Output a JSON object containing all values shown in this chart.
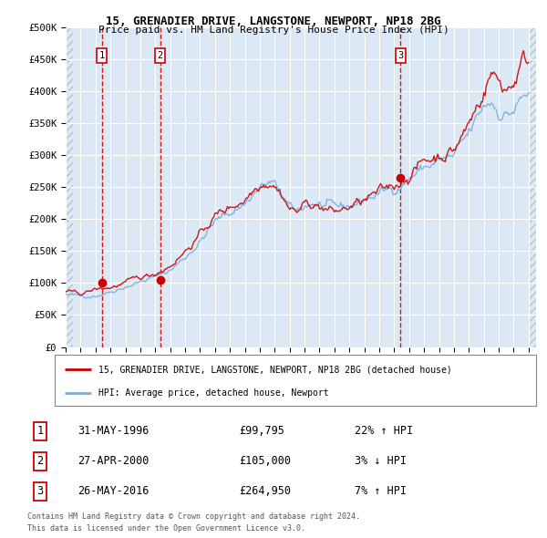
{
  "title": "15, GRENADIER DRIVE, LANGSTONE, NEWPORT, NP18 2BG",
  "subtitle": "Price paid vs. HM Land Registry's House Price Index (HPI)",
  "ylabel_ticks": [
    "£0",
    "£50K",
    "£100K",
    "£150K",
    "£200K",
    "£250K",
    "£300K",
    "£350K",
    "£400K",
    "£450K",
    "£500K"
  ],
  "ytick_values": [
    0,
    50000,
    100000,
    150000,
    200000,
    250000,
    300000,
    350000,
    400000,
    450000,
    500000
  ],
  "xlim": [
    1994.0,
    2025.5
  ],
  "ylim": [
    0,
    500000
  ],
  "hpi_color": "#7aaddb",
  "price_color": "#cc0000",
  "sale_points": [
    {
      "year": 1996.42,
      "price": 99795,
      "label": "1"
    },
    {
      "year": 2000.33,
      "price": 105000,
      "label": "2"
    },
    {
      "year": 2016.42,
      "price": 264950,
      "label": "3"
    }
  ],
  "sale_labels": [
    {
      "label": "1",
      "date": "31-MAY-1996",
      "price": "£99,795",
      "hpi": "22% ↑ HPI"
    },
    {
      "label": "2",
      "date": "27-APR-2000",
      "price": "£105,000",
      "hpi": "3% ↓ HPI"
    },
    {
      "label": "3",
      "date": "26-MAY-2016",
      "price": "£264,950",
      "hpi": "7% ↑ HPI"
    }
  ],
  "legend_line1": "15, GRENADIER DRIVE, LANGSTONE, NEWPORT, NP18 2BG (detached house)",
  "legend_line2": "HPI: Average price, detached house, Newport",
  "footnote1": "Contains HM Land Registry data © Crown copyright and database right 2024.",
  "footnote2": "This data is licensed under the Open Government Licence v3.0.",
  "bg_color": "#ffffff",
  "plot_bg_color": "#dce9f5",
  "grid_color": "#ffffff"
}
